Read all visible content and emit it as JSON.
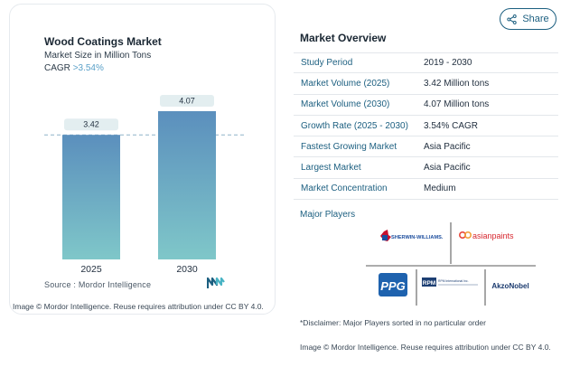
{
  "chart": {
    "title": "Wood Coatings Market",
    "subtitle": "Market Size in Million Tons",
    "cagr_label": "CAGR",
    "cagr_value": ">3.54%",
    "source": "Source :  Mordor Intelligence",
    "attribution": "Image © Mordor Intelligence. Reuse requires attribution under CC BY 4.0."
  },
  "chart_data": {
    "type": "bar",
    "categories": [
      "2025",
      "2030"
    ],
    "values": [
      3.42,
      4.07
    ],
    "data_labels": [
      "3.42",
      "4.07"
    ],
    "title": "Wood Coatings Market",
    "subtitle": "Market Size in Million Tons",
    "ylim": [
      0,
      4.07
    ],
    "reference_line": 3.42,
    "colors": {
      "bar_top": "#5b8fbd",
      "bar_bottom": "#7fc7c9",
      "label_bg": "#e3eef0",
      "ref_line": "#8fb4c9"
    }
  },
  "share": {
    "label": "Share"
  },
  "overview": {
    "title": "Market Overview",
    "rows": [
      {
        "label": "Study Period",
        "value": "2019 - 2030"
      },
      {
        "label": "Market Volume (2025)",
        "value": "3.42 Million tons"
      },
      {
        "label": "Market Volume (2030)",
        "value": "4.07 Million tons"
      },
      {
        "label": "Growth Rate (2025 - 2030)",
        "value": "3.54% CAGR"
      },
      {
        "label": "Fastest Growing Market",
        "value": "Asia Pacific"
      },
      {
        "label": "Largest Market",
        "value": "Asia Pacific"
      },
      {
        "label": "Market Concentration",
        "value": "Medium"
      }
    ]
  },
  "players": {
    "title": "Major Players",
    "logos": [
      "SHERWIN-WILLIAMS.",
      "asianpaints",
      "PPG",
      "RPM International Inc.",
      "AkzoNobel"
    ],
    "disclaimer": "*Disclaimer: Major Players sorted in no particular order"
  },
  "attribution_right": "Image © Mordor Intelligence. Reuse requires attribution under CC BY 4.0.",
  "colors": {
    "accent": "#1c5f80",
    "text": "#1f2d3d",
    "border": "#e3e7eb"
  }
}
